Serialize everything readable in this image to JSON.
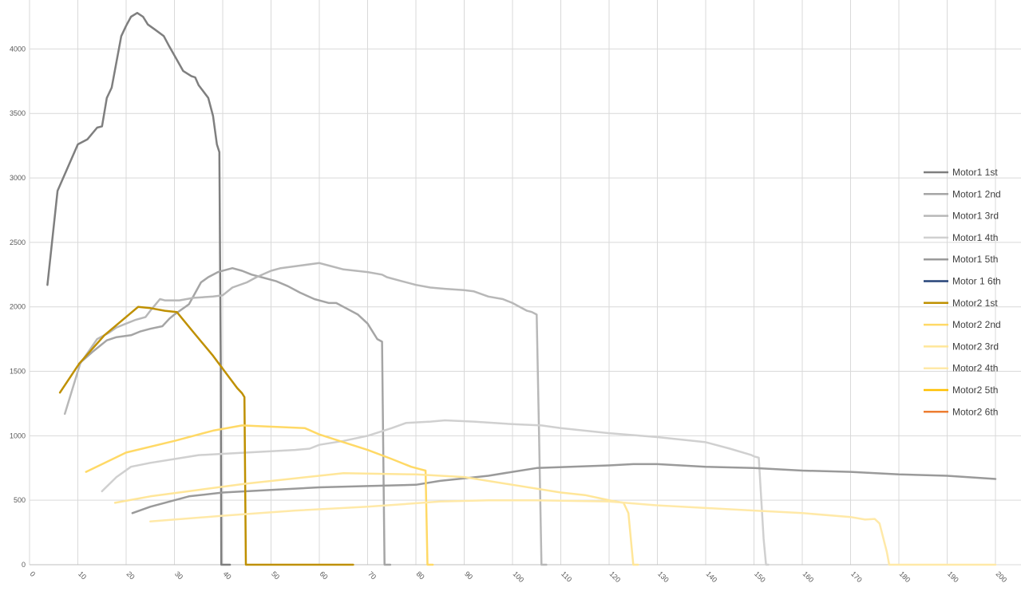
{
  "chart_data": {
    "type": "line",
    "title": "",
    "xlabel": "",
    "ylabel": "",
    "xlim": [
      0,
      200
    ],
    "ylim": [
      0,
      4380
    ],
    "x_ticks": [
      0,
      10,
      20,
      30,
      40,
      50,
      60,
      70,
      80,
      90,
      100,
      110,
      120,
      130,
      140,
      150,
      160,
      170,
      180,
      190,
      200
    ],
    "y_ticks": [
      0,
      500,
      1000,
      1500,
      2000,
      2500,
      3000,
      3500,
      4000
    ],
    "grid": true,
    "legend_position": "right",
    "series": [
      {
        "name": "Motor1 1st",
        "color": "#7f7f7f",
        "points": [
          [
            3.7,
            2170
          ],
          [
            5.8,
            2900
          ],
          [
            10,
            3260
          ],
          [
            12,
            3300
          ],
          [
            14,
            3390
          ],
          [
            15,
            3400
          ],
          [
            16,
            3620
          ],
          [
            17,
            3700
          ],
          [
            19,
            4100
          ],
          [
            20,
            4180
          ],
          [
            21,
            4250
          ],
          [
            22.3,
            4280
          ],
          [
            23.5,
            4250
          ],
          [
            24.5,
            4190
          ],
          [
            26,
            4150
          ],
          [
            27.8,
            4100
          ],
          [
            28.8,
            4030
          ],
          [
            30,
            3950
          ],
          [
            31.8,
            3830
          ],
          [
            33.5,
            3790
          ],
          [
            34.3,
            3780
          ],
          [
            35,
            3720
          ],
          [
            37,
            3620
          ],
          [
            38,
            3480
          ],
          [
            38.8,
            3260
          ],
          [
            39.3,
            3200
          ],
          [
            39.6,
            1500
          ],
          [
            39.7,
            0
          ],
          [
            41.5,
            0
          ]
        ]
      },
      {
        "name": "Motor1 2nd",
        "color": "#a5a5a5",
        "points": [
          [
            10.3,
            1560
          ],
          [
            13,
            1650
          ],
          [
            16,
            1740
          ],
          [
            18,
            1765
          ],
          [
            21,
            1780
          ],
          [
            23,
            1810
          ],
          [
            25,
            1830
          ],
          [
            27.5,
            1850
          ],
          [
            29,
            1910
          ],
          [
            30,
            1940
          ],
          [
            33,
            2020
          ],
          [
            35.5,
            2190
          ],
          [
            37,
            2230
          ],
          [
            39,
            2270
          ],
          [
            42,
            2300
          ],
          [
            44,
            2280
          ],
          [
            46,
            2250
          ],
          [
            48,
            2230
          ],
          [
            51,
            2200
          ],
          [
            53.5,
            2160
          ],
          [
            56,
            2110
          ],
          [
            59,
            2060
          ],
          [
            62,
            2030
          ],
          [
            63.5,
            2030
          ],
          [
            65.5,
            1990
          ],
          [
            68,
            1940
          ],
          [
            70,
            1870
          ],
          [
            72,
            1750
          ],
          [
            73,
            1730
          ],
          [
            73.2,
            1000
          ],
          [
            73.5,
            0
          ],
          [
            74.7,
            0
          ]
        ]
      },
      {
        "name": "Motor1 3rd",
        "color": "#b8b8b8",
        "points": [
          [
            7.3,
            1170
          ],
          [
            10.5,
            1560
          ],
          [
            14,
            1750
          ],
          [
            16.5,
            1800
          ],
          [
            18,
            1840
          ],
          [
            20,
            1870
          ],
          [
            22,
            1900
          ],
          [
            24,
            1920
          ],
          [
            25,
            1970
          ],
          [
            27,
            2060
          ],
          [
            28,
            2050
          ],
          [
            31,
            2050
          ],
          [
            34,
            2070
          ],
          [
            38,
            2080
          ],
          [
            40,
            2090
          ],
          [
            42,
            2150
          ],
          [
            45,
            2190
          ],
          [
            47,
            2230
          ],
          [
            50,
            2280
          ],
          [
            52,
            2300
          ],
          [
            56,
            2320
          ],
          [
            60,
            2340
          ],
          [
            62,
            2320
          ],
          [
            65,
            2290
          ],
          [
            70,
            2270
          ],
          [
            73,
            2250
          ],
          [
            74,
            2230
          ],
          [
            77,
            2200
          ],
          [
            80,
            2170
          ],
          [
            83,
            2150
          ],
          [
            86,
            2140
          ],
          [
            90,
            2130
          ],
          [
            92,
            2120
          ],
          [
            95,
            2080
          ],
          [
            98,
            2060
          ],
          [
            100,
            2030
          ],
          [
            103,
            1970
          ],
          [
            104,
            1960
          ],
          [
            105,
            1940
          ],
          [
            105.5,
            1000
          ],
          [
            106,
            0
          ],
          [
            107,
            0
          ]
        ]
      },
      {
        "name": "Motor1 4th",
        "color": "#d0d0d0",
        "points": [
          [
            15,
            570
          ],
          [
            18,
            680
          ],
          [
            21,
            760
          ],
          [
            25,
            790
          ],
          [
            30,
            820
          ],
          [
            35,
            850
          ],
          [
            40,
            860
          ],
          [
            45,
            870
          ],
          [
            50,
            880
          ],
          [
            55,
            890
          ],
          [
            58,
            900
          ],
          [
            60,
            930
          ],
          [
            65,
            960
          ],
          [
            70,
            1000
          ],
          [
            75,
            1060
          ],
          [
            78,
            1100
          ],
          [
            83,
            1110
          ],
          [
            86,
            1120
          ],
          [
            92,
            1110
          ],
          [
            100,
            1090
          ],
          [
            106,
            1080
          ],
          [
            110,
            1060
          ],
          [
            120,
            1020
          ],
          [
            130,
            990
          ],
          [
            140,
            950
          ],
          [
            145,
            900
          ],
          [
            149.5,
            850
          ],
          [
            150,
            840
          ],
          [
            151,
            830
          ],
          [
            152,
            200
          ],
          [
            152.5,
            0
          ],
          [
            153,
            0
          ]
        ]
      },
      {
        "name": "Motor1 5th",
        "color": "#9a9a9a",
        "points": [
          [
            21.3,
            400
          ],
          [
            25,
            450
          ],
          [
            30,
            500
          ],
          [
            33,
            530
          ],
          [
            40,
            560
          ],
          [
            50,
            580
          ],
          [
            60,
            600
          ],
          [
            70,
            610
          ],
          [
            80,
            620
          ],
          [
            85,
            650
          ],
          [
            90,
            670
          ],
          [
            95,
            690
          ],
          [
            100,
            720
          ],
          [
            105,
            750
          ],
          [
            112,
            760
          ],
          [
            120,
            770
          ],
          [
            125,
            780
          ],
          [
            130,
            780
          ],
          [
            140,
            760
          ],
          [
            150,
            750
          ],
          [
            160,
            730
          ],
          [
            170,
            720
          ],
          [
            180,
            700
          ],
          [
            190,
            690
          ],
          [
            200,
            665
          ]
        ]
      },
      {
        "name": "Motor 1 6th",
        "color": "#264478",
        "points": []
      },
      {
        "name": "Motor2 1st",
        "color": "#bf9000",
        "points": [
          [
            6.3,
            1335
          ],
          [
            10.3,
            1560
          ],
          [
            15.5,
            1780
          ],
          [
            22.5,
            2000
          ],
          [
            25,
            1990
          ],
          [
            28,
            1970
          ],
          [
            30.5,
            1960
          ],
          [
            34,
            1800
          ],
          [
            38,
            1620
          ],
          [
            43,
            1370
          ],
          [
            44,
            1330
          ],
          [
            44.5,
            1300
          ],
          [
            44.8,
            0
          ],
          [
            67,
            0
          ]
        ]
      },
      {
        "name": "Motor2 2nd",
        "color": "#ffd966",
        "points": [
          [
            11.7,
            720
          ],
          [
            20,
            870
          ],
          [
            30,
            960
          ],
          [
            38,
            1040
          ],
          [
            44,
            1080
          ],
          [
            57,
            1060
          ],
          [
            60,
            1010
          ],
          [
            65,
            950
          ],
          [
            70,
            890
          ],
          [
            75,
            820
          ],
          [
            79,
            760
          ],
          [
            81,
            740
          ],
          [
            82,
            730
          ],
          [
            82.4,
            0
          ],
          [
            83.5,
            0
          ]
        ]
      },
      {
        "name": "Motor2 3rd",
        "color": "#ffe699",
        "points": [
          [
            17.7,
            480
          ],
          [
            25,
            530
          ],
          [
            35,
            580
          ],
          [
            45,
            630
          ],
          [
            55,
            670
          ],
          [
            65,
            710
          ],
          [
            80,
            700
          ],
          [
            90,
            680
          ],
          [
            100,
            620
          ],
          [
            110,
            560
          ],
          [
            115,
            540
          ],
          [
            120,
            500
          ],
          [
            123,
            480
          ],
          [
            124,
            400
          ],
          [
            125,
            0
          ],
          [
            126,
            0
          ]
        ]
      },
      {
        "name": "Motor2 4th",
        "color": "#ffe9a8",
        "points": [
          [
            25,
            335
          ],
          [
            40,
            380
          ],
          [
            55,
            420
          ],
          [
            70,
            450
          ],
          [
            85,
            490
          ],
          [
            95,
            500
          ],
          [
            105,
            500
          ],
          [
            120,
            490
          ],
          [
            130,
            460
          ],
          [
            140,
            440
          ],
          [
            150,
            420
          ],
          [
            160,
            400
          ],
          [
            170,
            370
          ],
          [
            173,
            350
          ],
          [
            175,
            355
          ],
          [
            176,
            320
          ],
          [
            177.5,
            100
          ],
          [
            178,
            0
          ],
          [
            200,
            0
          ]
        ]
      },
      {
        "name": "Motor2 5th",
        "color": "#ffc000",
        "points": []
      },
      {
        "name": "Motor2 6th",
        "color": "#ed7d31",
        "points": []
      }
    ]
  }
}
